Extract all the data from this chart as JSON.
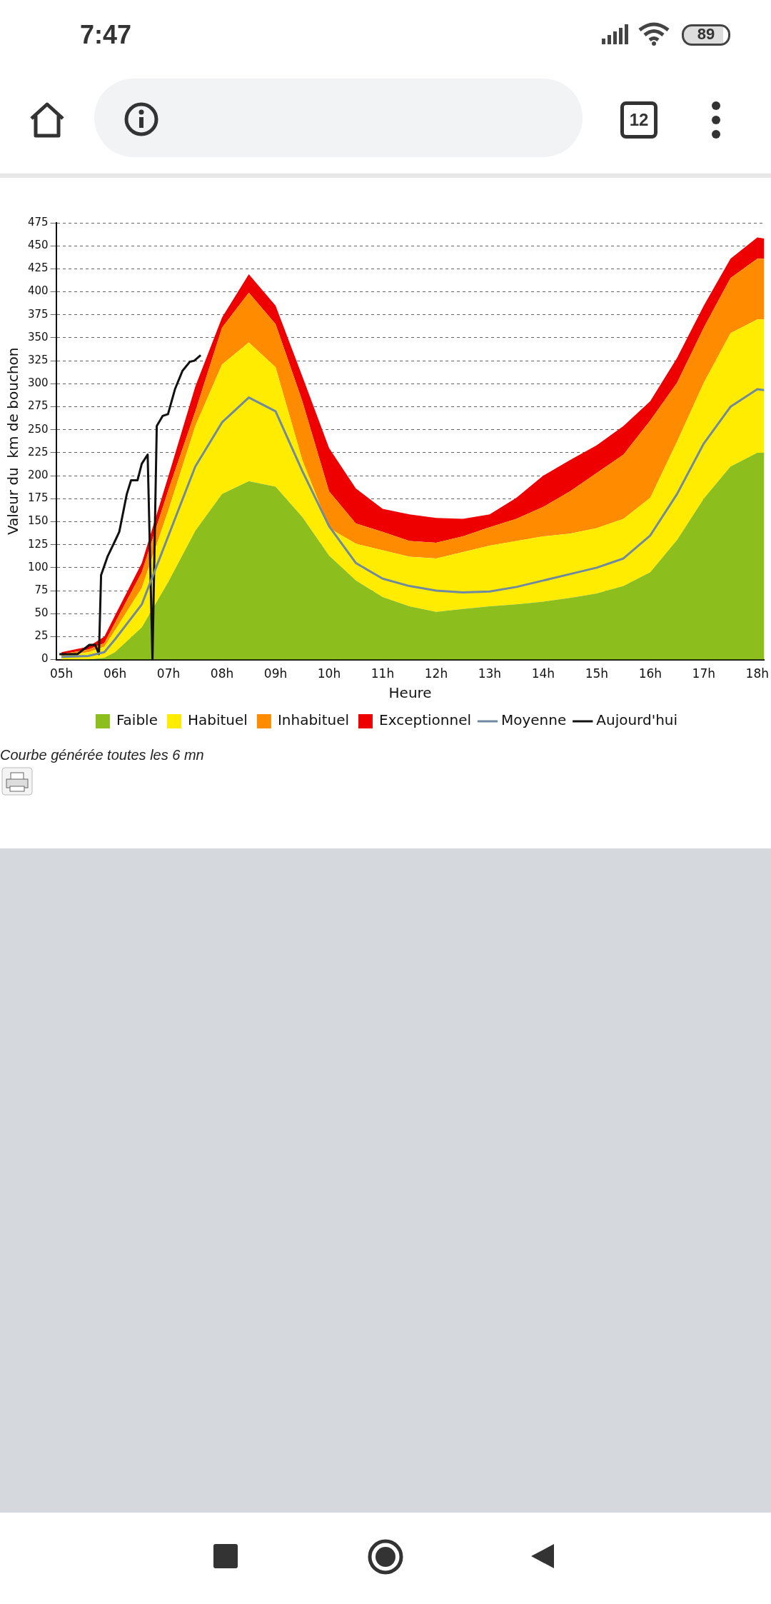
{
  "chart_data": {
    "type": "area",
    "stacked": true,
    "xlabel": "Heure",
    "ylabel": "Valeur du  km de bouchon",
    "x": [
      5,
      5.5,
      5.8,
      6,
      6.5,
      7,
      7.5,
      8,
      8.5,
      9,
      9.5,
      10,
      10.5,
      11,
      11.5,
      12,
      12.5,
      13,
      13.5,
      14,
      14.5,
      15,
      15.5,
      16,
      16.5,
      17,
      17.5,
      18,
      18.13
    ],
    "series": [
      {
        "name": "Faible",
        "color": "#8cbe1e",
        "values": [
          0,
          0,
          2,
          8,
          35,
          85,
          140,
          180,
          194,
          188,
          155,
          113,
          86,
          68,
          58,
          52,
          55,
          58,
          60,
          63,
          67,
          72,
          80,
          95,
          130,
          175,
          210,
          225,
          225
        ]
      },
      {
        "name": "Habituel",
        "color": "#ffec00",
        "values": [
          4,
          8,
          12,
          24,
          43,
          78,
          114,
          141,
          151,
          130,
          62,
          30,
          40,
          51,
          54,
          58,
          62,
          66,
          69,
          71,
          70,
          71,
          73,
          81,
          107,
          126,
          145,
          145,
          145
        ]
      },
      {
        "name": "Inhabituel",
        "color": "#ff8c00",
        "values": [
          2,
          3,
          4,
          8,
          17,
          22,
          16,
          40,
          54,
          47,
          64,
          40,
          22,
          20,
          17,
          17,
          17,
          20,
          24,
          32,
          46,
          60,
          70,
          84,
          64,
          60,
          60,
          66,
          66
        ]
      },
      {
        "name": "Exceptionnel",
        "color": "#ee0000",
        "values": [
          2,
          3,
          7,
          8,
          10,
          15,
          27,
          11,
          20,
          20,
          27,
          47,
          38,
          25,
          29,
          27,
          19,
          14,
          23,
          34,
          34,
          30,
          31,
          21,
          27,
          24,
          21,
          23,
          22
        ]
      },
      {
        "name": "Moyenne",
        "type": "line",
        "color": "#6f8aa0",
        "values": [
          3,
          4,
          8,
          22,
          60,
          135,
          210,
          258,
          285,
          270,
          205,
          145,
          105,
          88,
          80,
          75,
          73,
          74,
          79,
          86,
          93,
          100,
          110,
          135,
          180,
          235,
          275,
          294,
          293
        ]
      },
      {
        "name": "Aujourd'hui",
        "type": "line",
        "color": "#111111",
        "x": [
          4.96,
          5.3,
          5.52,
          5.63,
          5.7,
          5.74,
          5.86,
          6.0,
          6.08,
          6.22,
          6.3,
          6.42,
          6.5,
          6.61,
          6.7,
          6.78,
          6.89,
          6.99,
          7.12,
          7.26,
          7.4,
          7.48,
          7.6
        ],
        "values": [
          6,
          6,
          16,
          16,
          6,
          92,
          112,
          129,
          139,
          180,
          195,
          195,
          213,
          223,
          0,
          254,
          265,
          267,
          294,
          314,
          324,
          325,
          331
        ]
      }
    ],
    "xlim": [
      4.9,
      18.13
    ],
    "xticks": [
      {
        "value": 5,
        "label": "05h"
      },
      {
        "value": 6,
        "label": "06h"
      },
      {
        "value": 7,
        "label": "07h"
      },
      {
        "value": 8,
        "label": "08h"
      },
      {
        "value": 9,
        "label": "09h"
      },
      {
        "value": 10,
        "label": "10h"
      },
      {
        "value": 11,
        "label": "11h"
      },
      {
        "value": 12,
        "label": "12h"
      },
      {
        "value": 13,
        "label": "13h"
      },
      {
        "value": 14,
        "label": "14h"
      },
      {
        "value": 15,
        "label": "15h"
      },
      {
        "value": 16,
        "label": "16h"
      },
      {
        "value": 17,
        "label": "17h"
      },
      {
        "value": 18,
        "label": "18h"
      }
    ],
    "ylim": [
      0,
      475
    ],
    "yticks": [
      0,
      25,
      50,
      75,
      100,
      125,
      150,
      175,
      200,
      225,
      250,
      275,
      300,
      325,
      350,
      375,
      400,
      425,
      450,
      475
    ],
    "grid": "y",
    "legend": "bottom",
    "marker": "none",
    "line_style": "solid",
    "annotations": [
      "Courbe générée toutes les 6 mn",
      "7:47",
      "89",
      "12"
    ]
  }
}
